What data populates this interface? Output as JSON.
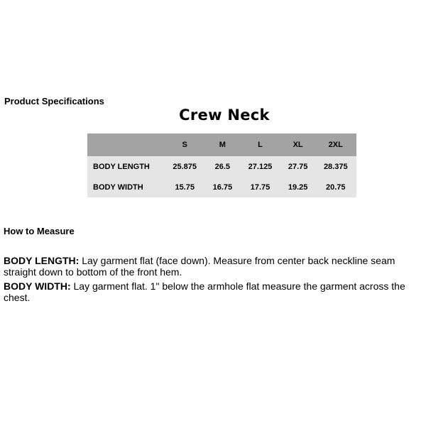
{
  "heading": "Product Specifications",
  "table_title": "Crew Neck",
  "table": {
    "columns": [
      "",
      "S",
      "M",
      "L",
      "XL",
      "2XL"
    ],
    "rows": [
      {
        "label": "BODY LENGTH",
        "values": [
          "25.875",
          "26.5",
          "27.125",
          "27.75",
          "28.375"
        ]
      },
      {
        "label": "BODY WIDTH",
        "values": [
          "15.75",
          "16.75",
          "17.75",
          "19.25",
          "20.75"
        ]
      }
    ]
  },
  "how_to_measure": {
    "heading": "How to Measure",
    "items": [
      {
        "term": "BODY LENGTH:",
        "text": " Lay garment flat (face down). Measure from center back neckline seam straight down to bottom of the front hem."
      },
      {
        "term": "BODY WIDTH:",
        "text": " Lay garment flat. 1\" below the armhole flat measure the garment across the chest."
      }
    ]
  },
  "colors": {
    "header_bg": "#a3a3a3",
    "body_bg": "#e5e5e5"
  }
}
